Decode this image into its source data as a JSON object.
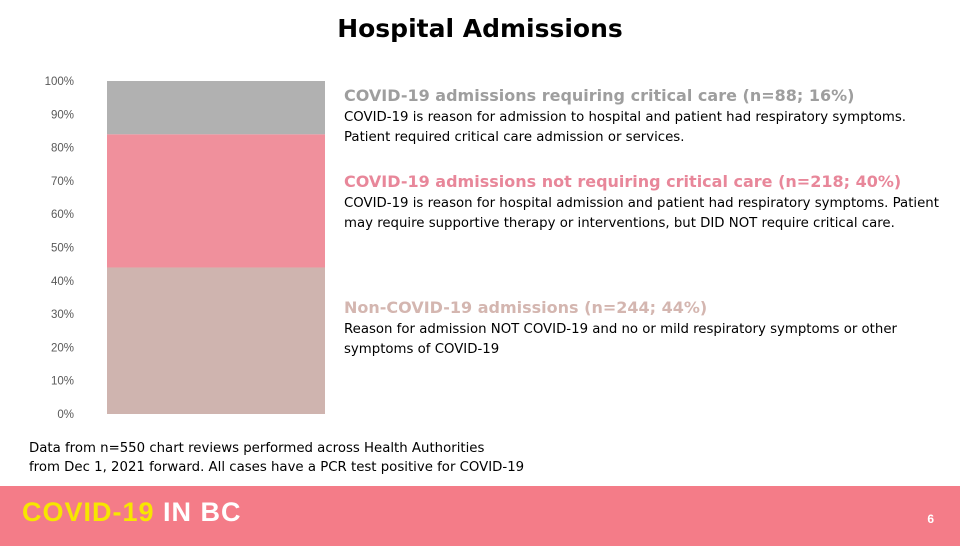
{
  "slide": {
    "title": "Hospital Admissions",
    "footnote_line1": "Data from n=550 chart reviews performed across Health Authorities",
    "footnote_line2_a": "from Dec 1, 2021 forward.",
    "footnote_line2_b": " All cases have a PCR test positive for COVID-19",
    "page_number": "6"
  },
  "footer": {
    "brand_part1": "COVID-19",
    "brand_part2": " IN BC",
    "background_color": "#F47C88",
    "brand_part1_color": "#F7E600",
    "brand_part2_color": "#FFFFFF"
  },
  "legend": [
    {
      "heading": "COVID-19 admissions requiring critical care (n=88; 16%)",
      "color": "#9E9E9E",
      "description": "COVID-19 is reason for admission to hospital and patient had respiratory symptoms.  Patient required critical care admission or services."
    },
    {
      "heading": "COVID-19 admissions not requiring critical care (n=218; 40%)",
      "color": "#E8879A",
      "description": "COVID-19 is reason for hospital admission and patient had respiratory symptoms.  Patient may require supportive therapy or interventions, but DID NOT require critical care."
    },
    {
      "heading": "Non-COVID-19  admissions (n=244; 44%)",
      "color": "#D4B6B0",
      "description": "Reason for admission NOT COVID-19 and no or mild respiratory symptoms or other symptoms of COVID-19"
    }
  ],
  "chart_data": {
    "type": "bar",
    "stacked": true,
    "categories": [
      ""
    ],
    "series": [
      {
        "values": [
          44
        ],
        "color": "#CFB4AF"
      },
      {
        "values": [
          40
        ],
        "color": "#F0909C"
      },
      {
        "values": [
          16
        ],
        "color": "#B1B1B1"
      }
    ],
    "ylim": [
      0,
      100
    ],
    "yticks": [
      "0%",
      "10%",
      "20%",
      "30%",
      "40%",
      "50%",
      "60%",
      "70%",
      "80%",
      "90%",
      "100%"
    ],
    "grid": false
  }
}
